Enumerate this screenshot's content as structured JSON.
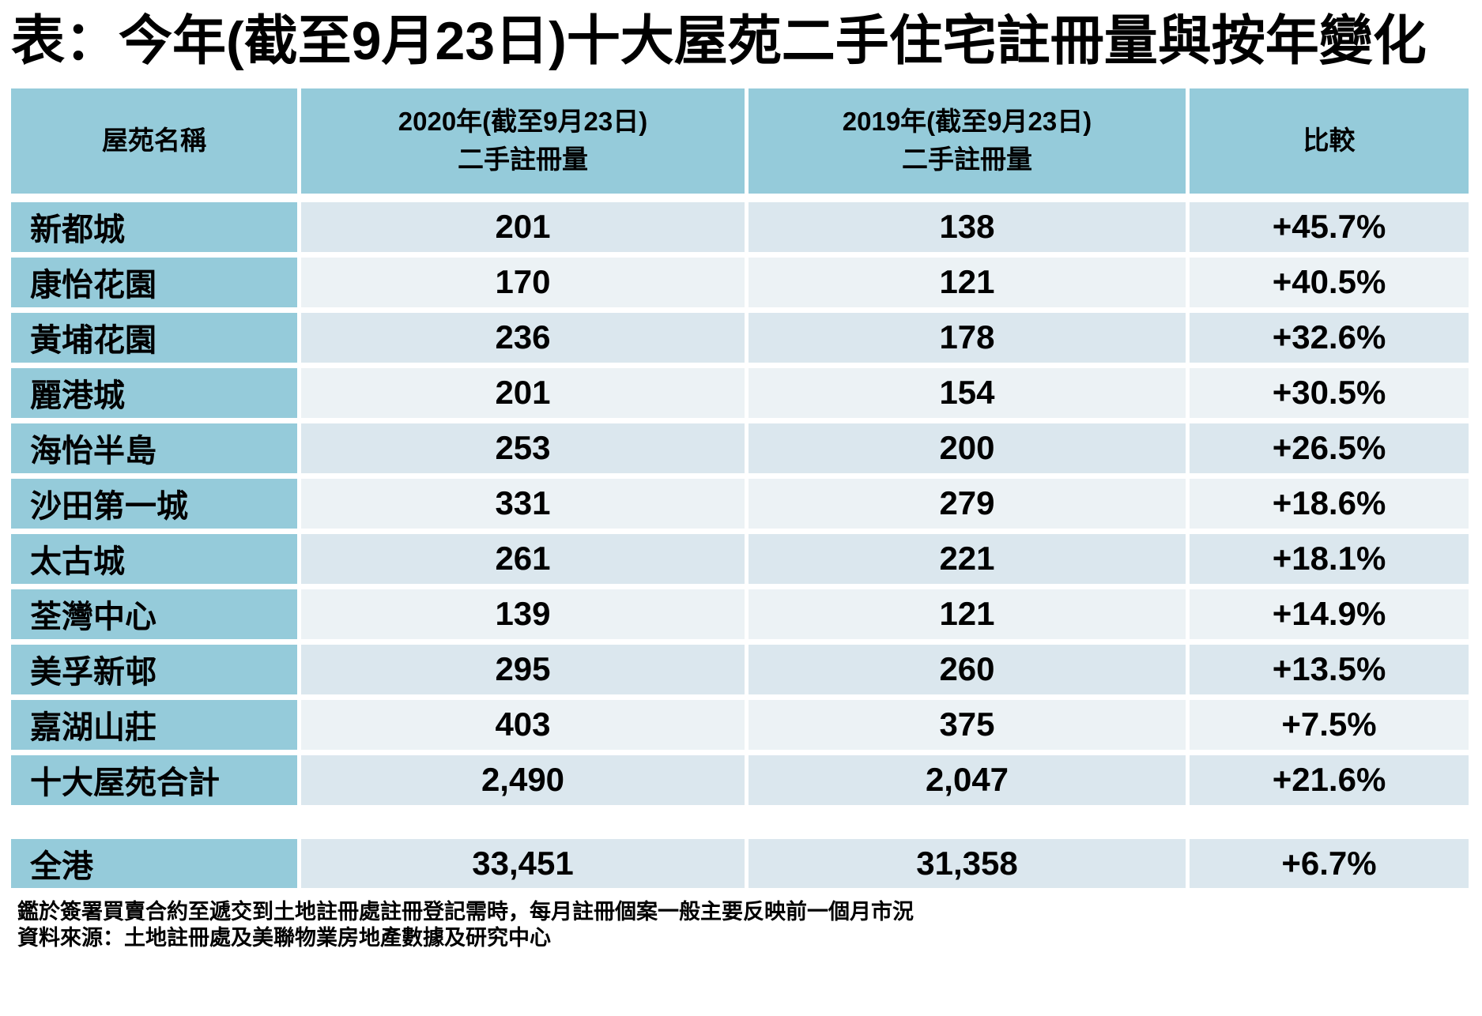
{
  "title": "表：今年(截至9月23日)十大屋苑二手住宅註冊量與按年變化",
  "chart_data": {
    "type": "table",
    "title": "表：今年(截至9月23日)十大屋苑二手住宅註冊量與按年變化",
    "columns": [
      "屋苑名稱",
      "2020年(截至9月23日)二手註冊量",
      "2019年(截至9月23日)二手註冊量",
      "比較"
    ],
    "header_lines": {
      "estate": "屋苑名稱",
      "y2020_1": "2020年(截至9月23日)",
      "y2020_2": "二手註冊量",
      "y2019_1": "2019年(截至9月23日)",
      "y2019_2": "二手註冊量",
      "compare": "比較"
    },
    "rows": [
      [
        "新都城",
        "201",
        "138",
        "+45.7%"
      ],
      [
        "康怡花園",
        "170",
        "121",
        "+40.5%"
      ],
      [
        "黃埔花園",
        "236",
        "178",
        "+32.6%"
      ],
      [
        "麗港城",
        "201",
        "154",
        "+30.5%"
      ],
      [
        "海怡半島",
        "253",
        "200",
        "+26.5%"
      ],
      [
        "沙田第一城",
        "331",
        "279",
        "+18.6%"
      ],
      [
        "太古城",
        "261",
        "221",
        "+18.1%"
      ],
      [
        "荃灣中心",
        "139",
        "121",
        "+14.9%"
      ],
      [
        "美孚新邨",
        "295",
        "260",
        "+13.5%"
      ],
      [
        "嘉湖山莊",
        "403",
        "375",
        "+7.5%"
      ],
      [
        "十大屋苑合計",
        "2,490",
        "2,047",
        "+21.6%"
      ]
    ],
    "total_row": [
      "全港",
      "33,451",
      "31,358",
      "+6.7%"
    ]
  },
  "footnotes": {
    "line1": "鑑於簽署買賣合約至遞交到土地註冊處註冊登記需時，每月註冊個案一般主要反映前一個月市況",
    "line2": "資料來源：土地註冊處及美聯物業房地產數據及研究中心"
  },
  "colors": {
    "header_blue": "#95cbda",
    "band_dark": "#dbe7ee",
    "band_light": "#ecf2f5",
    "text": "#000000",
    "background": "#ffffff"
  }
}
